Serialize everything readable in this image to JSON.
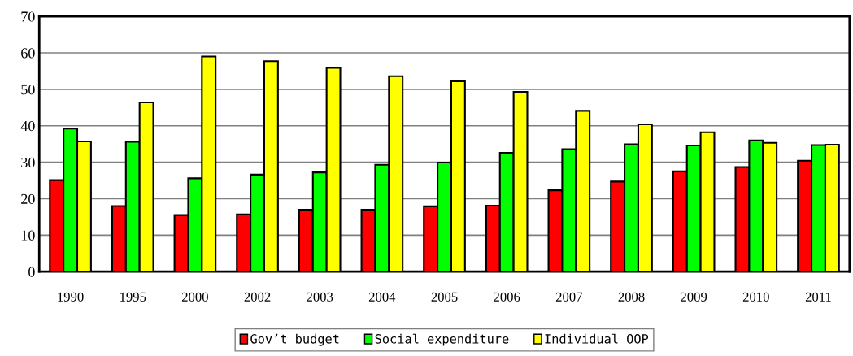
{
  "chart_data": {
    "type": "bar",
    "categories": [
      "1990",
      "1995",
      "2000",
      "2002",
      "2003",
      "2004",
      "2005",
      "2006",
      "2007",
      "2008",
      "2009",
      "2010",
      "2011"
    ],
    "series": [
      {
        "name": "Gov’t budget",
        "color": "#ff0000",
        "values": [
          25.1,
          18.0,
          15.5,
          15.7,
          17.0,
          17.0,
          17.9,
          18.1,
          22.3,
          24.7,
          27.5,
          28.7,
          30.4
        ]
      },
      {
        "name": "Social expenditure",
        "color": "#00ff00",
        "values": [
          39.2,
          35.6,
          25.6,
          26.6,
          27.2,
          29.3,
          29.9,
          32.6,
          33.6,
          34.9,
          34.6,
          36.0,
          34.7
        ]
      },
      {
        "name": "Individual OOP",
        "color": "#ffff00",
        "values": [
          35.7,
          46.4,
          59.0,
          57.7,
          55.9,
          53.6,
          52.2,
          49.3,
          44.1,
          40.4,
          38.2,
          35.3,
          34.8
        ]
      }
    ],
    "ylim": [
      0,
      70
    ],
    "yticks": [
      0,
      10,
      20,
      30,
      40,
      50,
      60,
      70
    ],
    "grid": "y",
    "legend": "bottom"
  }
}
